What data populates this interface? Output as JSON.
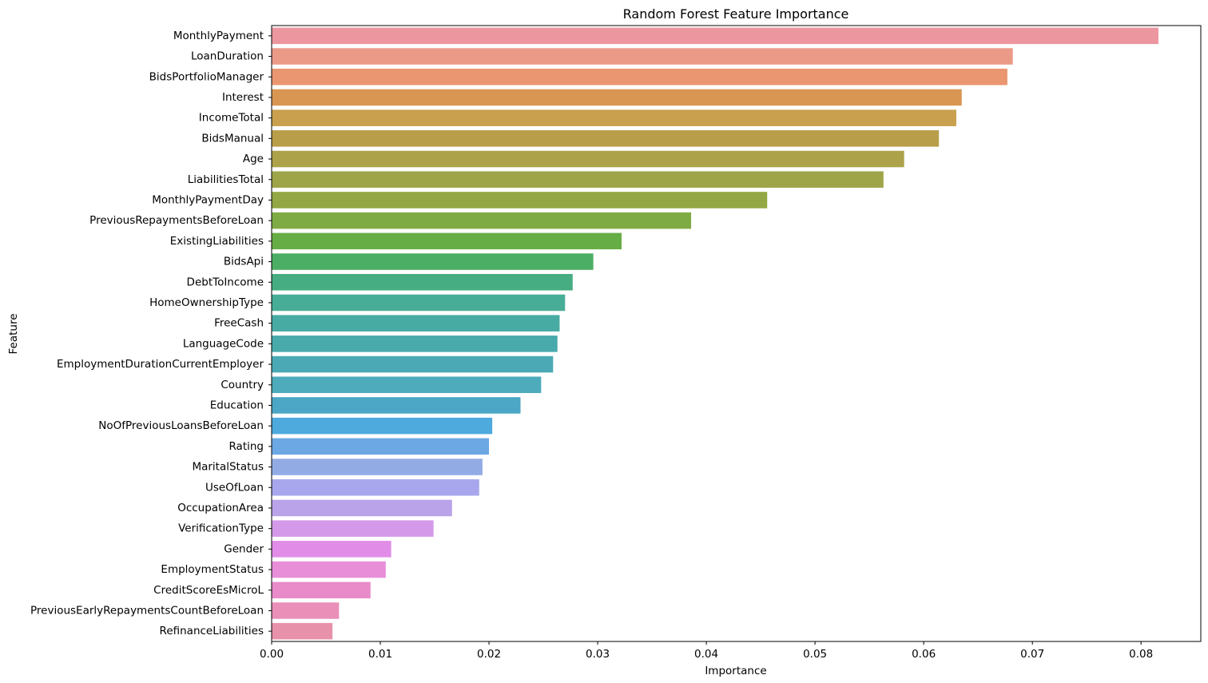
{
  "chart_data": {
    "type": "bar",
    "orientation": "horizontal",
    "title": "Random Forest Feature Importance",
    "xlabel": "Importance",
    "ylabel": "Feature",
    "xlim": [
      0,
      0.0855
    ],
    "xticks": [
      0.0,
      0.01,
      0.02,
      0.03,
      0.04,
      0.05,
      0.06,
      0.07,
      0.08
    ],
    "xtick_labels": [
      "0.00",
      "0.01",
      "0.02",
      "0.03",
      "0.04",
      "0.05",
      "0.06",
      "0.07",
      "0.08"
    ],
    "grid": false,
    "legend": "none",
    "categories": [
      "MonthlyPayment",
      "LoanDuration",
      "BidsPortfolioManager",
      "Interest",
      "IncomeTotal",
      "BidsManual",
      "Age",
      "LiabilitiesTotal",
      "MonthlyPaymentDay",
      "PreviousRepaymentsBeforeLoan",
      "ExistingLiabilities",
      "BidsApi",
      "DebtToIncome",
      "HomeOwnershipType",
      "FreeCash",
      "LanguageCode",
      "EmploymentDurationCurrentEmployer",
      "Country",
      "Education",
      "NoOfPreviousLoansBeforeLoan",
      "Rating",
      "MaritalStatus",
      "UseOfLoan",
      "OccupationArea",
      "VerificationType",
      "Gender",
      "EmploymentStatus",
      "CreditScoreEsMicroL",
      "PreviousEarlyRepaymentsCountBeforeLoan",
      "RefinanceLiabilities"
    ],
    "values": [
      0.0816,
      0.0682,
      0.0677,
      0.0635,
      0.063,
      0.0614,
      0.0582,
      0.0563,
      0.0456,
      0.0386,
      0.0322,
      0.0296,
      0.0277,
      0.027,
      0.0265,
      0.0263,
      0.0259,
      0.0248,
      0.0229,
      0.0203,
      0.02,
      0.0194,
      0.0191,
      0.0166,
      0.0149,
      0.011,
      0.0105,
      0.0091,
      0.0062,
      0.0056
    ],
    "colors": [
      "#ec96a0",
      "#eb9a88",
      "#ea9670",
      "#d99652",
      "#c9a04d",
      "#b99e49",
      "#aca24a",
      "#9ea548",
      "#93a744",
      "#7fab44",
      "#67ad46",
      "#4bae64",
      "#46ac81",
      "#48ad96",
      "#48aba3",
      "#49aaac",
      "#4aa9b4",
      "#4dabbb",
      "#4ca6c6",
      "#4ea9dd",
      "#6ba8e4",
      "#93abe5",
      "#a8a7ed",
      "#bba3ea",
      "#d49ae9",
      "#e18de8",
      "#e88ed9",
      "#e88bc8",
      "#e98fb8",
      "#e891ab"
    ]
  }
}
